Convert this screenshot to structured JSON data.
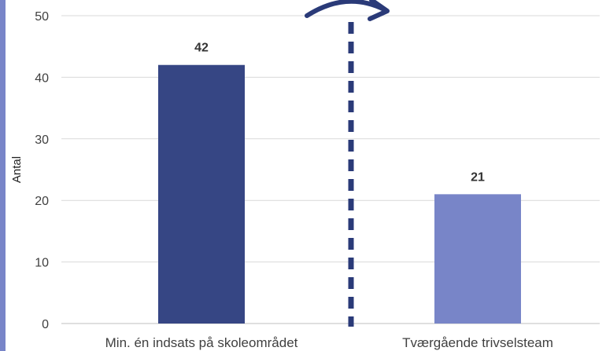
{
  "chart_data": {
    "type": "bar",
    "categories": [
      "Min. én indsats på skoleområdet",
      "Tværgående trivselsteam"
    ],
    "values": [
      42,
      21
    ],
    "data_labels": [
      "42",
      "21"
    ],
    "ylabel": "Antal",
    "xlabel": "",
    "ylim": [
      0,
      50
    ],
    "yticks": [
      0,
      10,
      20,
      30,
      40,
      50
    ],
    "grid": true,
    "colors": [
      "#364684",
      "#7885c8"
    ],
    "divider_color": "#2a3a78",
    "accent_color": "#7885c8"
  }
}
